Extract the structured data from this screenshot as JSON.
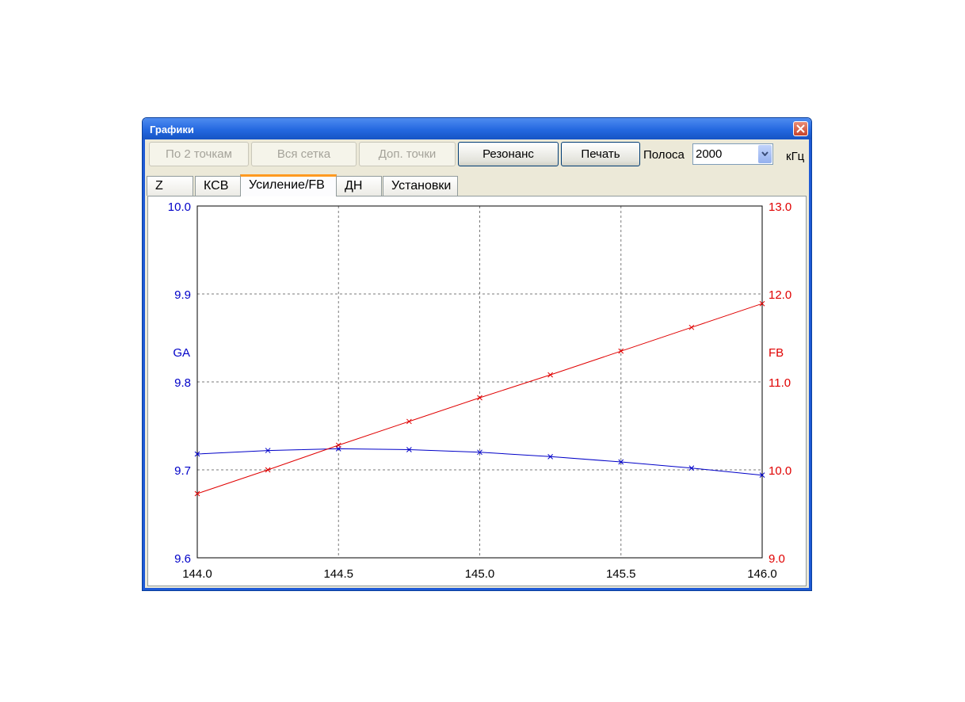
{
  "window": {
    "title": "Графики"
  },
  "toolbar": {
    "by_two_points": "По 2 точкам",
    "whole_grid": "Вся сетка",
    "extra_points": "Доп. точки",
    "resonance": "Резонанс",
    "print": "Печать",
    "band_label": "Полоса",
    "band_value": "2000",
    "band_unit": "кГц"
  },
  "tabs": [
    {
      "label": "Z"
    },
    {
      "label": "КСВ"
    },
    {
      "label": "Усиление/FB",
      "selected": true
    },
    {
      "label": "ДН"
    },
    {
      "label": "Установки"
    }
  ],
  "colors": {
    "left_series": "#0000c8",
    "right_series": "#e00000",
    "titlebar": "#2468e0"
  },
  "icons": {
    "close": "close-icon",
    "dropdown": "chevron-down-icon"
  },
  "chart_data": {
    "type": "line",
    "x": [
      144.0,
      144.25,
      144.5,
      144.75,
      145.0,
      145.25,
      145.5,
      145.75,
      146.0
    ],
    "xlim": [
      144.0,
      146.0
    ],
    "x_ticks": [
      "144.0",
      "144.5",
      "145.0",
      "145.5",
      "146.0"
    ],
    "x_tick_values": [
      144.0,
      144.5,
      145.0,
      145.5,
      146.0
    ],
    "y_left": {
      "label": "GA",
      "lim": [
        9.6,
        10.0
      ],
      "ticks": [
        "10.0",
        "9.9",
        "9.8",
        "9.7",
        "9.6"
      ],
      "tick_values": [
        10.0,
        9.9,
        9.8,
        9.7,
        9.6
      ]
    },
    "y_right": {
      "label": "FB",
      "lim": [
        9.0,
        13.0
      ],
      "ticks": [
        "13.0",
        "12.0",
        "11.0",
        "10.0",
        "9.0"
      ],
      "tick_values": [
        13.0,
        12.0,
        11.0,
        10.0,
        9.0
      ]
    },
    "series": [
      {
        "name": "GA",
        "axis": "left",
        "color": "#0000c8",
        "values": [
          9.718,
          9.722,
          9.724,
          9.723,
          9.72,
          9.715,
          9.709,
          9.702,
          9.694
        ]
      },
      {
        "name": "FB",
        "axis": "right",
        "color": "#e00000",
        "values": [
          9.73,
          10.0,
          10.28,
          10.55,
          10.82,
          11.08,
          11.35,
          11.62,
          11.89
        ]
      }
    ],
    "grid": true
  }
}
